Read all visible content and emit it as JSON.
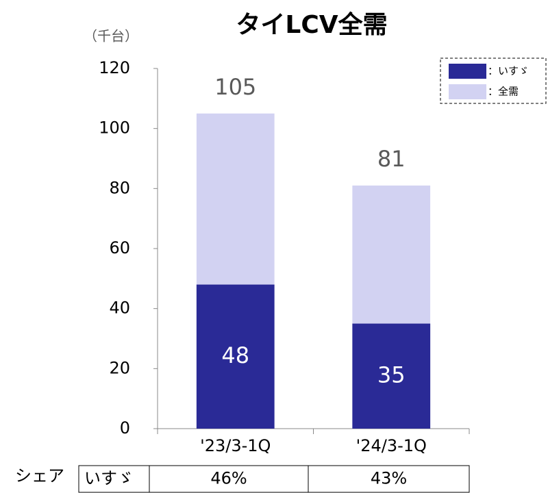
{
  "chart_data": {
    "type": "overlap-bar",
    "title": "タイLCV全需",
    "y_label": "（千台）",
    "categories": [
      "'23/3-1Q",
      "'24/3-1Q"
    ],
    "series": [
      {
        "name": "：全需",
        "color": "#d2d2f2",
        "values": [
          105,
          81
        ],
        "label_color": "#595959"
      },
      {
        "name": "：いすゞ",
        "color": "#2a2a96",
        "values": [
          48,
          35
        ],
        "label_color": "#ffffff"
      }
    ],
    "ylim": [
      0,
      120
    ],
    "yticks": [
      0,
      20,
      40,
      60,
      80,
      100,
      120
    ],
    "grid": false,
    "legend": "top-right",
    "table": {
      "row_label": "シェア",
      "header": "いすゞ",
      "cells": [
        "46%",
        "43%"
      ]
    }
  }
}
